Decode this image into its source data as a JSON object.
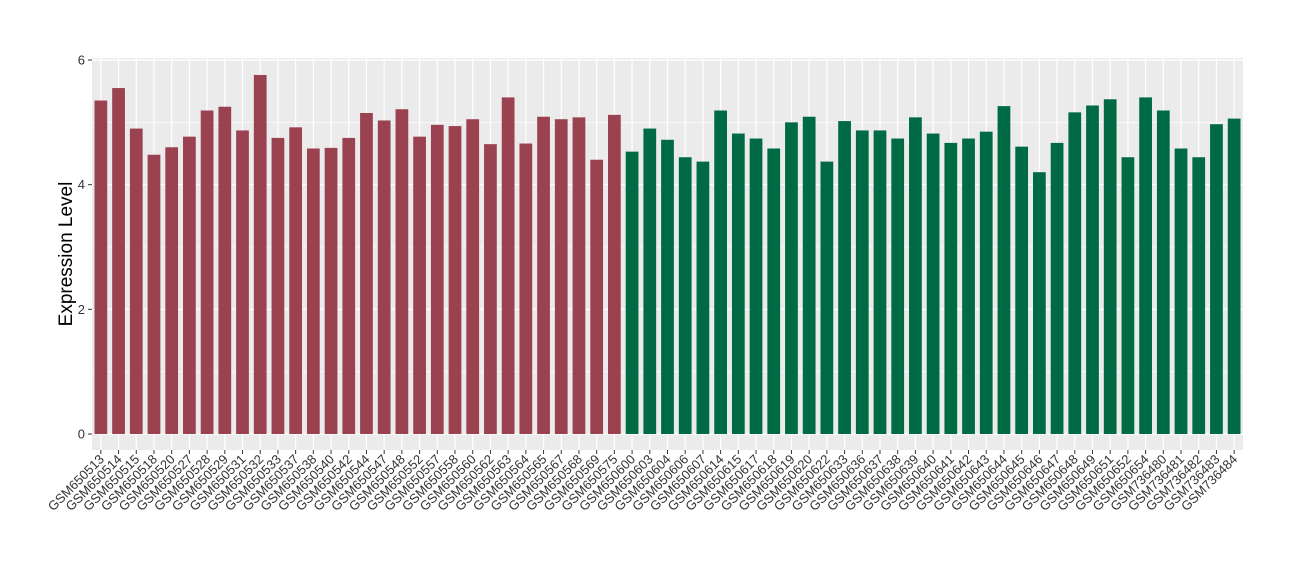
{
  "chart_data": {
    "type": "bar",
    "title": "",
    "xlabel": "",
    "ylabel": "Expression Level",
    "ylim": [
      0,
      6
    ],
    "yticks": [
      0,
      2,
      4,
      6
    ],
    "grid": true,
    "legend": "none",
    "categories": [
      "GSM650513",
      "GSM650514",
      "GSM650515",
      "GSM650518",
      "GSM650520",
      "GSM650527",
      "GSM650528",
      "GSM650529",
      "GSM650531",
      "GSM650532",
      "GSM650533",
      "GSM650537",
      "GSM650538",
      "GSM650540",
      "GSM650542",
      "GSM650544",
      "GSM650547",
      "GSM650548",
      "GSM650552",
      "GSM650557",
      "GSM650558",
      "GSM650560",
      "GSM650562",
      "GSM650563",
      "GSM650564",
      "GSM650565",
      "GSM650567",
      "GSM650568",
      "GSM650569",
      "GSM650575",
      "GSM650600",
      "GSM650603",
      "GSM650604",
      "GSM650606",
      "GSM650607",
      "GSM650614",
      "GSM650615",
      "GSM650617",
      "GSM650618",
      "GSM650619",
      "GSM650620",
      "GSM650622",
      "GSM650633",
      "GSM650636",
      "GSM650637",
      "GSM650638",
      "GSM650639",
      "GSM650640",
      "GSM650641",
      "GSM650642",
      "GSM650643",
      "GSM650644",
      "GSM650645",
      "GSM650646",
      "GSM650647",
      "GSM650648",
      "GSM650649",
      "GSM650651",
      "GSM650652",
      "GSM650654",
      "GSM736480",
      "GSM736481",
      "GSM736482",
      "GSM736483",
      "GSM736484"
    ],
    "values": [
      5.35,
      5.55,
      4.9,
      4.48,
      4.6,
      4.77,
      5.19,
      5.25,
      4.87,
      5.76,
      4.75,
      4.92,
      4.58,
      4.59,
      4.75,
      5.15,
      5.03,
      5.21,
      4.77,
      4.96,
      4.94,
      5.05,
      4.65,
      5.4,
      4.66,
      5.09,
      5.05,
      5.08,
      4.4,
      5.12,
      4.53,
      4.9,
      4.72,
      4.44,
      4.37,
      5.19,
      4.82,
      4.74,
      4.58,
      5.0,
      5.09,
      4.37,
      5.02,
      4.87,
      4.87,
      4.74,
      5.08,
      4.82,
      4.67,
      4.74,
      4.85,
      5.26,
      4.61,
      4.2,
      4.67,
      5.16,
      5.27,
      5.37,
      4.44,
      5.4,
      5.19,
      4.58,
      4.44,
      4.97,
      5.06
    ],
    "group_colors": [
      "#9B4250",
      "#006A44"
    ],
    "groups": [
      0,
      0,
      0,
      0,
      0,
      0,
      0,
      0,
      0,
      0,
      0,
      0,
      0,
      0,
      0,
      0,
      0,
      0,
      0,
      0,
      0,
      0,
      0,
      0,
      0,
      0,
      0,
      0,
      0,
      0,
      1,
      1,
      1,
      1,
      1,
      1,
      1,
      1,
      1,
      1,
      1,
      1,
      1,
      1,
      1,
      1,
      1,
      1,
      1,
      1,
      1,
      1,
      1,
      1,
      1,
      1,
      1,
      1,
      1,
      1,
      1,
      1,
      1,
      1,
      1
    ],
    "panel_background": "#EBEBEB",
    "grid_color": "#FFFFFF"
  }
}
